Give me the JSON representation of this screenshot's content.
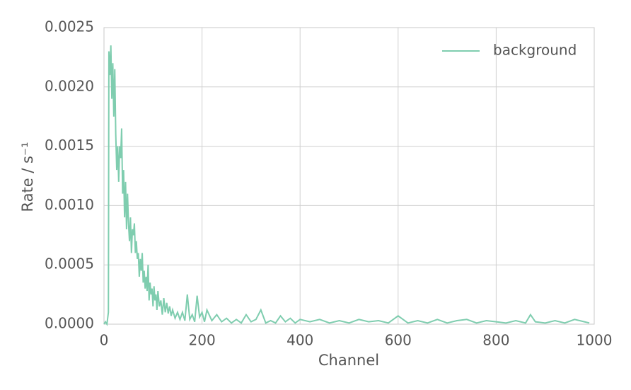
{
  "chart_data": {
    "type": "line",
    "xlabel": "Channel",
    "ylabel": "Rate / s⁻¹",
    "x": [
      0,
      3,
      6,
      9,
      10,
      12,
      14,
      16,
      18,
      20,
      22,
      24,
      26,
      28,
      30,
      32,
      34,
      36,
      38,
      40,
      42,
      44,
      46,
      48,
      50,
      52,
      54,
      56,
      58,
      60,
      62,
      64,
      66,
      68,
      70,
      72,
      74,
      76,
      78,
      80,
      82,
      84,
      86,
      88,
      90,
      92,
      94,
      96,
      98,
      100,
      102,
      104,
      106,
      108,
      110,
      113,
      116,
      119,
      122,
      125,
      128,
      131,
      134,
      137,
      140,
      145,
      150,
      155,
      160,
      165,
      170,
      175,
      180,
      185,
      190,
      195,
      200,
      205,
      210,
      220,
      230,
      240,
      250,
      260,
      270,
      280,
      290,
      300,
      310,
      320,
      330,
      340,
      350,
      360,
      370,
      380,
      390,
      400,
      420,
      440,
      460,
      480,
      500,
      520,
      540,
      560,
      580,
      600,
      620,
      640,
      660,
      680,
      700,
      720,
      740,
      760,
      780,
      800,
      820,
      840,
      860,
      870,
      880,
      900,
      920,
      940,
      960,
      980,
      990
    ],
    "series": [
      {
        "name": "background",
        "color": "#7fcdaf",
        "values": [
          0,
          2e-05,
          0,
          0.0001,
          0.0023,
          0.0021,
          0.00235,
          0.0019,
          0.0022,
          0.00175,
          0.00215,
          0.0016,
          0.0013,
          0.0015,
          0.0012,
          0.0015,
          0.0014,
          0.00165,
          0.0011,
          0.0013,
          0.0009,
          0.0012,
          0.0008,
          0.0011,
          0.00085,
          0.0007,
          0.0009,
          0.0006,
          0.0008,
          0.00075,
          0.00085,
          0.0006,
          0.0007,
          0.00055,
          0.0006,
          0.0004,
          0.00055,
          0.00045,
          0.0006,
          0.00035,
          0.00045,
          0.0003,
          0.0004,
          0.00028,
          0.0005,
          0.0002,
          0.00035,
          0.00025,
          0.0003,
          0.00015,
          0.00032,
          0.0002,
          0.00025,
          0.00012,
          0.00028,
          0.00015,
          0.0002,
          8e-05,
          0.00022,
          0.0001,
          0.00018,
          9e-05,
          0.00015,
          7e-05,
          0.00012,
          5e-05,
          0.0001,
          4e-05,
          0.0001,
          3e-05,
          0.00025,
          4e-05,
          8e-05,
          2e-05,
          0.00024,
          6e-05,
          0.0001,
          2e-05,
          0.00012,
          3e-05,
          8e-05,
          2e-05,
          5e-05,
          1e-05,
          4e-05,
          1e-05,
          8e-05,
          2e-05,
          4e-05,
          0.00012,
          1e-05,
          3e-05,
          1e-05,
          7e-05,
          2e-05,
          5e-05,
          1e-05,
          4e-05,
          2e-05,
          4e-05,
          1e-05,
          3e-05,
          1e-05,
          4e-05,
          2e-05,
          3e-05,
          1e-05,
          7e-05,
          1e-05,
          3e-05,
          1e-05,
          4e-05,
          1e-05,
          3e-05,
          4e-05,
          1e-05,
          3e-05,
          2e-05,
          1e-05,
          3e-05,
          1e-05,
          8e-05,
          2e-05,
          1e-05,
          3e-05,
          1e-05,
          4e-05,
          2e-05,
          1e-05
        ]
      }
    ],
    "xlim": [
      0,
      1000
    ],
    "xticks": [
      0,
      200,
      400,
      600,
      800,
      1000
    ],
    "ylim": [
      0,
      0.0025
    ],
    "yticks": [
      {
        "value": 0,
        "label": "0.0000"
      },
      {
        "value": 0.0005,
        "label": "0.0005"
      },
      {
        "value": 0.001,
        "label": "0.0010"
      },
      {
        "value": 0.0015,
        "label": "0.0015"
      },
      {
        "value": 0.002,
        "label": "0.0020"
      },
      {
        "value": 0.0025,
        "label": "0.0025"
      }
    ],
    "grid": true,
    "legend": "upper right"
  }
}
